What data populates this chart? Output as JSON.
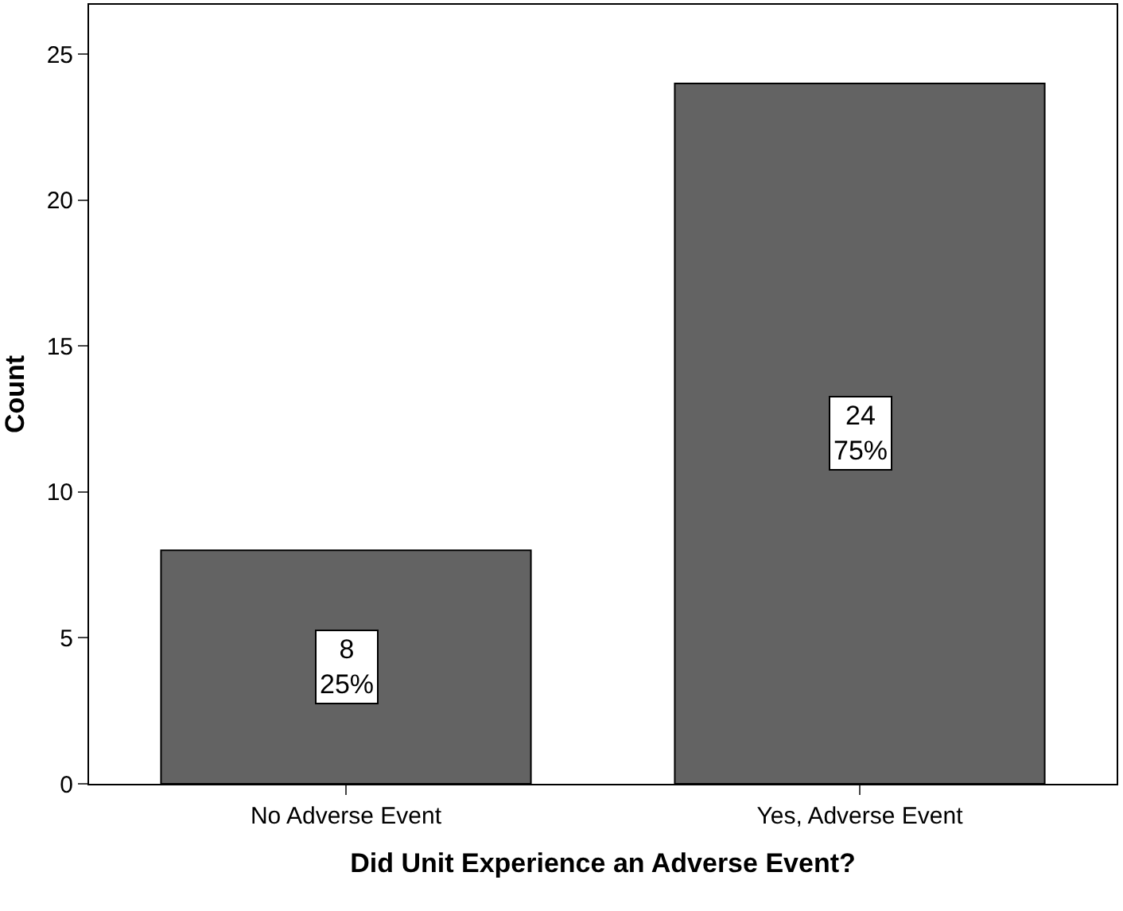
{
  "chart_data": {
    "type": "bar",
    "xlabel": "Did Unit Experience an Adverse Event?",
    "ylabel": "Count",
    "categories": [
      "No Adverse Event",
      "Yes, Adverse Event"
    ],
    "values": [
      8,
      24
    ],
    "value_labels": [
      "8\n25%",
      "24\n75%"
    ],
    "color": "#636363",
    "ylim": [
      0,
      26.7
    ],
    "yticks": [
      0,
      5,
      10,
      15,
      20,
      25
    ],
    "legend": false
  }
}
